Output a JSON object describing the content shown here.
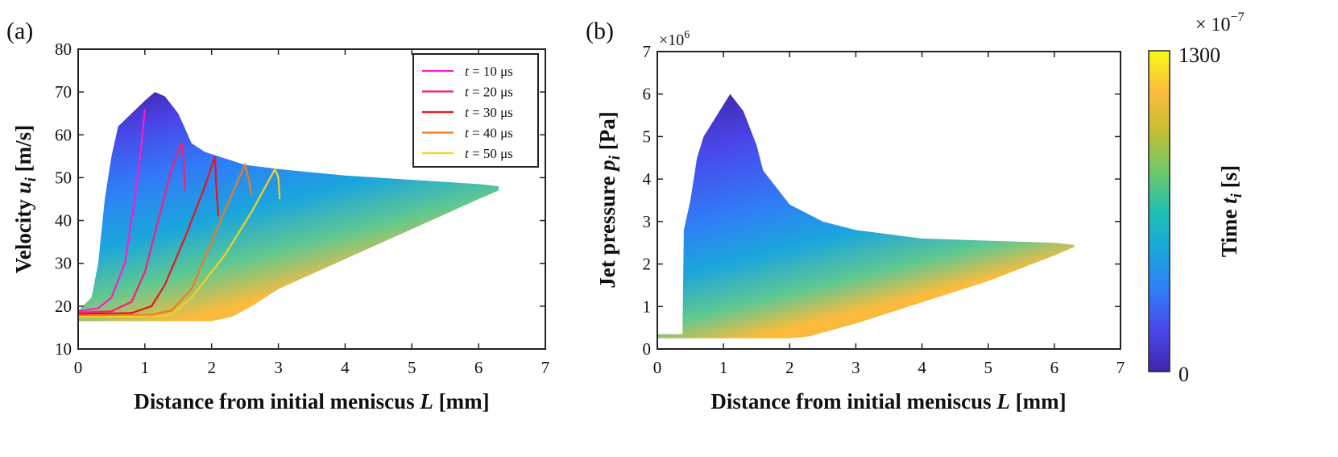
{
  "chart_data": [
    {
      "type": "area",
      "panel": "(a)",
      "xlabel": "Distance from initial meniscus L [mm]",
      "xlabel_parts": {
        "pre": "Distance from initial meniscus ",
        "var": "L",
        "post": " [mm]"
      },
      "ylabel": "Velocity u_i [m/s]",
      "ylabel_parts": {
        "pre": "Velocity ",
        "var": "u",
        "sub": "i",
        "post": " [m/s]"
      },
      "xlim": [
        0,
        7
      ],
      "ylim": [
        10,
        80
      ],
      "xticks": [
        0,
        1,
        2,
        3,
        4,
        5,
        6,
        7
      ],
      "yticks": [
        10,
        20,
        30,
        40,
        50,
        60,
        70,
        80
      ],
      "color_by": "Time t_i [s]",
      "envelope": {
        "upper": [
          [
            0,
            19
          ],
          [
            0.2,
            22
          ],
          [
            0.3,
            30
          ],
          [
            0.4,
            45
          ],
          [
            0.5,
            55
          ],
          [
            0.6,
            62
          ],
          [
            0.8,
            65
          ],
          [
            1.0,
            68
          ],
          [
            1.15,
            70
          ],
          [
            1.3,
            69
          ],
          [
            1.5,
            65
          ],
          [
            1.7,
            58
          ],
          [
            1.9,
            56
          ],
          [
            2.1,
            55
          ],
          [
            2.5,
            53
          ],
          [
            3,
            52
          ],
          [
            4,
            50.5
          ],
          [
            5,
            49.5
          ],
          [
            6,
            48.5
          ],
          [
            6.3,
            48
          ]
        ],
        "lower": [
          [
            0,
            16.5
          ],
          [
            1,
            16.5
          ],
          [
            2,
            16.5
          ],
          [
            2.3,
            17.5
          ],
          [
            2.6,
            20
          ],
          [
            3,
            24
          ],
          [
            4,
            31
          ],
          [
            5,
            38
          ],
          [
            6,
            45
          ],
          [
            6.3,
            47
          ]
        ]
      },
      "series": [
        {
          "name": "t = 10 μs",
          "label_var": "t",
          "label_rest": " = 10 μs",
          "color": "#ff1acd",
          "points": [
            [
              0,
              18.8
            ],
            [
              0.3,
              19.5
            ],
            [
              0.5,
              22
            ],
            [
              0.7,
              30
            ],
            [
              0.85,
              45
            ],
            [
              0.95,
              58
            ],
            [
              1.0,
              66
            ]
          ]
        },
        {
          "name": "t = 20 μs",
          "label_var": "t",
          "label_rest": " = 20 μs",
          "color": "#ff1a7a",
          "points": [
            [
              0,
              18.5
            ],
            [
              0.5,
              18.8
            ],
            [
              0.8,
              21
            ],
            [
              1.0,
              28
            ],
            [
              1.2,
              40
            ],
            [
              1.4,
              52
            ],
            [
              1.55,
              58
            ],
            [
              1.58,
              55
            ],
            [
              1.6,
              47
            ]
          ]
        },
        {
          "name": "t = 30 μs",
          "label_var": "t",
          "label_rest": " = 30 μs",
          "color": "#e8141e",
          "points": [
            [
              0,
              18.2
            ],
            [
              0.8,
              18.4
            ],
            [
              1.1,
              20
            ],
            [
              1.3,
              25
            ],
            [
              1.6,
              36
            ],
            [
              1.9,
              48
            ],
            [
              2.05,
              55
            ],
            [
              2.07,
              48
            ],
            [
              2.1,
              41
            ]
          ]
        },
        {
          "name": "t = 40 μs",
          "label_var": "t",
          "label_rest": " = 40 μs",
          "color": "#f07a1e",
          "points": [
            [
              0,
              17.8
            ],
            [
              1.1,
              18
            ],
            [
              1.4,
              19
            ],
            [
              1.7,
              24
            ],
            [
              2.0,
              35
            ],
            [
              2.3,
              46
            ],
            [
              2.5,
              53
            ],
            [
              2.55,
              50
            ],
            [
              2.6,
              46
            ]
          ]
        },
        {
          "name": "t = 50 μs",
          "label_var": "t",
          "label_rest": " = 50 μs",
          "color": "#f5d21e",
          "points": [
            [
              0,
              17.5
            ],
            [
              1.2,
              17.6
            ],
            [
              1.4,
              18
            ],
            [
              1.7,
              22
            ],
            [
              2.2,
              32
            ],
            [
              2.6,
              42
            ],
            [
              2.95,
              52
            ],
            [
              3.0,
              50
            ],
            [
              3.02,
              45
            ]
          ]
        }
      ],
      "legend": "top-right"
    },
    {
      "type": "area",
      "panel": "(b)",
      "xlabel": "Distance from initial meniscus L [mm]",
      "xlabel_parts": {
        "pre": "Distance from initial meniscus ",
        "var": "L",
        "post": " [mm]"
      },
      "ylabel": "Jet pressure p_i [Pa]",
      "ylabel_parts": {
        "pre": "Jet pressure ",
        "var": "p",
        "sub": "i",
        "post": " [Pa]"
      },
      "xlim": [
        0,
        7
      ],
      "ylim": [
        0,
        7
      ],
      "xticks": [
        0,
        1,
        2,
        3,
        4,
        5,
        6,
        7
      ],
      "yticks": [
        0,
        1,
        2,
        3,
        4,
        5,
        6,
        7
      ],
      "y_multiplier": "×10",
      "y_multiplier_exp": "6",
      "color_by": "Time t_i [s]",
      "envelope": {
        "upper": [
          [
            0,
            0.35
          ],
          [
            0.38,
            0.35
          ],
          [
            0.4,
            2.8
          ],
          [
            0.5,
            3.5
          ],
          [
            0.6,
            4.5
          ],
          [
            0.7,
            5.0
          ],
          [
            0.9,
            5.5
          ],
          [
            1.1,
            6.0
          ],
          [
            1.3,
            5.6
          ],
          [
            1.5,
            4.8
          ],
          [
            1.6,
            4.2
          ],
          [
            1.8,
            3.8
          ],
          [
            2.0,
            3.4
          ],
          [
            2.5,
            3.0
          ],
          [
            3,
            2.8
          ],
          [
            4,
            2.6
          ],
          [
            5,
            2.55
          ],
          [
            6,
            2.5
          ],
          [
            6.3,
            2.45
          ]
        ],
        "lower": [
          [
            0,
            0.25
          ],
          [
            1,
            0.25
          ],
          [
            2,
            0.25
          ],
          [
            2.3,
            0.3
          ],
          [
            3,
            0.6
          ],
          [
            4,
            1.1
          ],
          [
            5,
            1.6
          ],
          [
            6,
            2.2
          ],
          [
            6.3,
            2.4
          ]
        ]
      }
    }
  ],
  "colorbar": {
    "label": "Time t_i [s]",
    "label_parts": {
      "pre": "Time ",
      "var": "t",
      "sub": "i",
      "post": " [s]"
    },
    "min_label": "0",
    "max_label": "1300",
    "scale_base": "× 10",
    "scale_exp": "−7",
    "colors": [
      "#3e26a8",
      "#4a45e8",
      "#2f7df7",
      "#1ba6dc",
      "#20c0b0",
      "#6cc86a",
      "#c5bf34",
      "#fcbb3d",
      "#f9fb15"
    ]
  }
}
